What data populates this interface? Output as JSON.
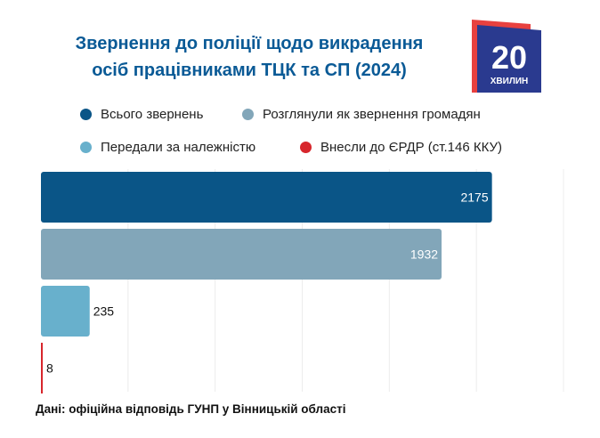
{
  "title_line1": "Звернення до поліції щодо викрадення",
  "title_line2": "осіб працівниками ТЦК та СП (2024)",
  "logo": {
    "number": "20",
    "word": "ХВИЛИН",
    "colors": {
      "main": "#2a3a8f",
      "accent": "#e8413f"
    }
  },
  "source": "Дані: офіційна відповідь ГУНП у Вінницькій області",
  "chart_data": {
    "type": "bar",
    "orientation": "horizontal",
    "categories": [
      "Всього звернень",
      "Розглянули як звернення громадян",
      "Передали за належністю",
      "Внесли до ЄРДР (ст.146 ККУ)"
    ],
    "values": [
      2175,
      1932,
      235,
      8
    ],
    "colors": [
      "#0a5587",
      "#82a6b9",
      "#68b0cc",
      "#d7262c"
    ],
    "data_labels": [
      "2175",
      "1932",
      "235",
      "8"
    ],
    "legend": [
      "Всього звернень",
      "Розглянули як звернення громадян",
      "Передали за належністю",
      "Внесли до ЄРДР (ст.146 ККУ)"
    ],
    "legend_position": "top",
    "xlim": [
      0,
      2520
    ],
    "grid": true,
    "title": "Звернення до поліції щодо викрадення осіб працівниками ТЦК та СП (2024)"
  }
}
